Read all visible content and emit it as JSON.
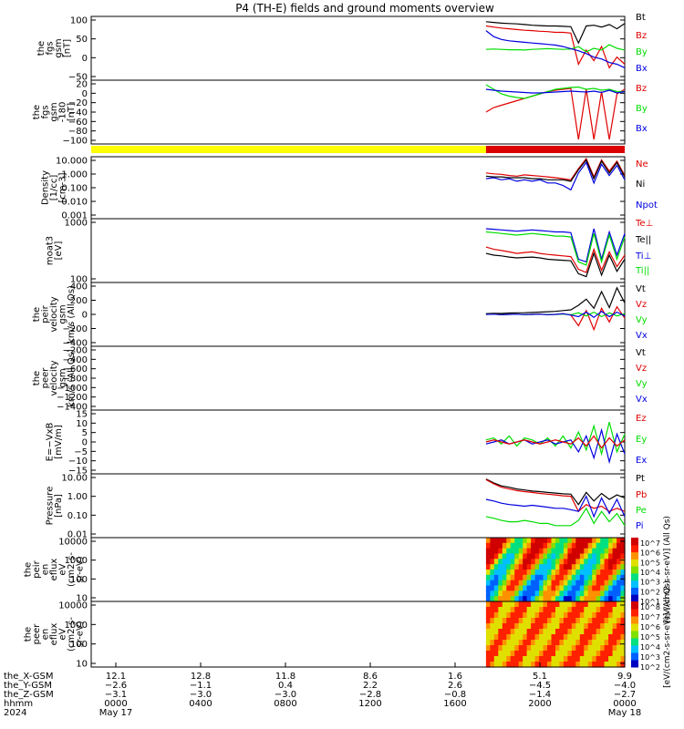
{
  "title": "P4 (TH-E) fields and ground moments overview",
  "colors": {
    "black": "#000000",
    "red": "#e00000",
    "green": "#00dd00",
    "blue": "#0000e0",
    "yellow": "#ffff00",
    "bar_red": "#dd0000"
  },
  "chart_data": [
    {
      "type": "line",
      "ylabel": [
        "the",
        "fgs",
        "gsm",
        "[nT]"
      ],
      "yticks": [
        "100",
        "50",
        "0",
        "−50"
      ],
      "ylim": [
        -75,
        105
      ],
      "legend": [
        "Bt",
        "Bz",
        "By",
        "Bx"
      ],
      "series": [
        {
          "name": "Bt",
          "color": "black",
          "values": [
            90,
            88,
            86,
            85,
            84,
            82,
            80,
            79,
            78,
            78,
            77,
            76,
            30,
            78,
            80,
            75,
            82,
            70,
            85
          ]
        },
        {
          "name": "Bz",
          "color": "red",
          "values": [
            78,
            75,
            72,
            70,
            68,
            66,
            65,
            63,
            62,
            60,
            60,
            58,
            -30,
            10,
            -20,
            20,
            -40,
            -10,
            -30
          ]
        },
        {
          "name": "By",
          "color": "green",
          "values": [
            12,
            13,
            12,
            11,
            11,
            10,
            12,
            13,
            14,
            13,
            12,
            13,
            20,
            5,
            15,
            10,
            25,
            15,
            10
          ]
        },
        {
          "name": "Bx",
          "color": "blue",
          "values": [
            65,
            48,
            40,
            36,
            34,
            32,
            30,
            28,
            26,
            24,
            20,
            14,
            8,
            0,
            -10,
            -15,
            -25,
            -30,
            -40
          ]
        }
      ]
    },
    {
      "type": "line",
      "ylabel": [
        "the",
        "fgs",
        "gsm",
        "-180",
        "[nT]"
      ],
      "yticks": [
        "20",
        "0",
        "−20",
        "−40",
        "−60",
        "−80",
        "−100"
      ],
      "ylim": [
        -110,
        30
      ],
      "legend": [
        "Bz",
        "By",
        "Bx"
      ],
      "series": [
        {
          "name": "Bz",
          "color": "red",
          "values": [
            -40,
            -30,
            -25,
            -20,
            -15,
            -10,
            -5,
            0,
            5,
            8,
            10,
            12,
            -100,
            10,
            -100,
            5,
            -100,
            0,
            10
          ]
        },
        {
          "name": "By",
          "color": "green",
          "values": [
            20,
            10,
            0,
            -5,
            -8,
            -10,
            -5,
            0,
            5,
            10,
            12,
            14,
            15,
            10,
            12,
            8,
            10,
            5,
            5
          ]
        },
        {
          "name": "Bx",
          "color": "blue",
          "values": [
            10,
            8,
            6,
            5,
            4,
            3,
            2,
            2,
            3,
            4,
            5,
            6,
            5,
            4,
            6,
            3,
            8,
            2,
            5
          ]
        }
      ]
    },
    {
      "type": "line",
      "ylabel": [
        "Density",
        "[1/cc]",
        "[cm-3]"
      ],
      "yticks": [
        "10.000",
        "1.000",
        "0.100",
        "0.010",
        "0.001"
      ],
      "yscale": "log",
      "ylim": [
        0.001,
        20
      ],
      "legend": [
        "Ne",
        "Ni",
        "Npot"
      ],
      "series": [
        {
          "name": "Ne",
          "color": "red",
          "values": [
            1.5,
            1.3,
            1.2,
            1.0,
            0.9,
            1.1,
            1.0,
            0.9,
            0.8,
            0.7,
            0.6,
            0.5,
            3.0,
            15,
            0.8,
            12,
            2,
            10,
            1
          ]
        },
        {
          "name": "Ni",
          "color": "black",
          "values": [
            0.9,
            0.8,
            0.8,
            0.7,
            0.7,
            0.7,
            0.6,
            0.6,
            0.5,
            0.5,
            0.5,
            0.4,
            2.5,
            12,
            0.6,
            10,
            1.5,
            8,
            0.8
          ]
        },
        {
          "name": "Npot",
          "color": "blue",
          "values": [
            0.6,
            0.7,
            0.5,
            0.6,
            0.4,
            0.5,
            0.4,
            0.5,
            0.3,
            0.3,
            0.2,
            0.1,
            1.5,
            8,
            0.3,
            6,
            1,
            5,
            0.5
          ]
        }
      ]
    },
    {
      "type": "line",
      "ylabel": [
        "moat3",
        "[eV]"
      ],
      "yticks": [
        "1000",
        "100"
      ],
      "yscale": "log",
      "ylim": [
        60,
        5000
      ],
      "legend": [
        "Te⊥",
        "Te||",
        "Ti⊥",
        "Ti||"
      ],
      "series": [
        {
          "name": "Te⊥",
          "color": "red",
          "values": [
            700,
            600,
            550,
            500,
            450,
            480,
            500,
            450,
            420,
            400,
            380,
            360,
            150,
            120,
            600,
            140,
            500,
            180,
            400
          ]
        },
        {
          "name": "Te||",
          "color": "black",
          "values": [
            450,
            400,
            380,
            350,
            330,
            340,
            350,
            330,
            300,
            290,
            280,
            270,
            110,
            90,
            450,
            100,
            400,
            130,
            300
          ]
        },
        {
          "name": "Ti⊥",
          "color": "blue",
          "values": [
            2500,
            2400,
            2300,
            2200,
            2100,
            2200,
            2300,
            2200,
            2100,
            2000,
            2000,
            1900,
            300,
            250,
            2500,
            300,
            2000,
            400,
            1800
          ]
        },
        {
          "name": "Ti||",
          "color": "green",
          "values": [
            2000,
            1900,
            1800,
            1700,
            1600,
            1700,
            1800,
            1700,
            1600,
            1500,
            1500,
            1400,
            250,
            200,
            1800,
            250,
            1600,
            300,
            1400
          ]
        }
      ]
    },
    {
      "type": "line",
      "ylabel": [
        "the",
        "peir",
        "velocity",
        "gsm",
        "km/s (All Qs)"
      ],
      "yticks": [
        "400",
        "200",
        "0",
        "−200",
        "−400"
      ],
      "ylim": [
        -420,
        420
      ],
      "legend": [
        "Vt",
        "Vz",
        "Vy",
        "Vx"
      ],
      "series": [
        {
          "name": "Vt",
          "color": "black",
          "values": [
            10,
            15,
            12,
            18,
            20,
            22,
            25,
            30,
            35,
            40,
            50,
            60,
            120,
            200,
            80,
            300,
            90,
            350,
            150
          ]
        },
        {
          "name": "Vz",
          "color": "red",
          "values": [
            0,
            5,
            -5,
            0,
            3,
            -3,
            0,
            5,
            -5,
            0,
            10,
            -10,
            -150,
            50,
            -200,
            80,
            -100,
            100,
            -50
          ]
        },
        {
          "name": "Vy",
          "color": "green",
          "values": [
            0,
            2,
            -2,
            0,
            3,
            -3,
            0,
            2,
            -2,
            0,
            5,
            -5,
            20,
            -20,
            30,
            -30,
            20,
            -20,
            10
          ]
        },
        {
          "name": "Vx",
          "color": "blue",
          "values": [
            0,
            3,
            -3,
            0,
            2,
            -2,
            0,
            3,
            -3,
            0,
            8,
            -8,
            -30,
            30,
            -40,
            40,
            -30,
            30,
            -20
          ]
        }
      ]
    },
    {
      "type": "line",
      "ylabel": [
        "the",
        "peer",
        "velocity",
        "gsm",
        "km/s (All Qs)"
      ],
      "yticks": [
        "−200",
        "−400",
        "−600",
        "−800",
        "−1000",
        "−1200",
        "−1400"
      ],
      "ylim": [
        -1450,
        -100
      ],
      "legend": [
        "Vt",
        "Vz",
        "Vy",
        "Vx"
      ],
      "series": []
    },
    {
      "type": "line",
      "ylabel": [
        "E=−VxB",
        "[mV/m]"
      ],
      "yticks": [
        "15",
        "10",
        "5",
        "0",
        "−5",
        "−10",
        "−15"
      ],
      "ylim": [
        -16,
        16
      ],
      "legend": [
        "Ez",
        "Ey",
        "Ex"
      ],
      "series": [
        {
          "name": "Ey",
          "color": "green",
          "values": [
            1,
            2,
            -1,
            3,
            -2,
            2,
            1,
            -1,
            2,
            -2,
            3,
            -3,
            5,
            -4,
            8,
            -6,
            10,
            -5,
            4
          ]
        },
        {
          "name": "Ex",
          "color": "blue",
          "values": [
            -1,
            0,
            1,
            -1,
            0,
            1,
            -1,
            0,
            1,
            -1,
            0,
            1,
            -5,
            3,
            -8,
            6,
            -10,
            4,
            -6
          ]
        },
        {
          "name": "Ez",
          "color": "red",
          "values": [
            0,
            1,
            0,
            -1,
            0,
            1,
            0,
            -1,
            0,
            1,
            0,
            -1,
            2,
            -2,
            3,
            -3,
            2,
            -2,
            1
          ]
        }
      ]
    },
    {
      "type": "line",
      "ylabel": [
        "Pressure",
        "[nPa]"
      ],
      "yticks": [
        "10.00",
        "1.00",
        "0.10",
        "0.01"
      ],
      "yscale": "log",
      "ylim": [
        0.006,
        30
      ],
      "legend": [
        "Pt",
        "Pb",
        "Pe",
        "Pi"
      ],
      "series": [
        {
          "name": "Pt",
          "color": "black",
          "values": [
            15,
            9,
            6,
            5,
            4,
            3.5,
            3,
            2.8,
            2.5,
            2.3,
            2.1,
            2,
            0.5,
            2.5,
            0.8,
            2.2,
            1,
            1.8,
            1.2
          ]
        },
        {
          "name": "Pb",
          "color": "red",
          "values": [
            14,
            8,
            5,
            4,
            3.2,
            2.8,
            2.5,
            2.2,
            2,
            1.8,
            1.6,
            1.5,
            0.2,
            0.5,
            0.3,
            0.4,
            0.2,
            0.3,
            0.2
          ]
        },
        {
          "name": "Pe",
          "color": "green",
          "values": [
            0.1,
            0.08,
            0.06,
            0.05,
            0.05,
            0.06,
            0.05,
            0.04,
            0.04,
            0.03,
            0.03,
            0.03,
            0.06,
            0.3,
            0.04,
            0.2,
            0.05,
            0.15,
            0.03
          ]
        },
        {
          "name": "Pi",
          "color": "blue",
          "values": [
            1,
            0.8,
            0.6,
            0.5,
            0.45,
            0.4,
            0.45,
            0.4,
            0.35,
            0.3,
            0.3,
            0.25,
            0.2,
            1.5,
            0.1,
            1.2,
            0.15,
            1,
            0.1
          ]
        }
      ]
    },
    {
      "type": "heatmap",
      "ylabel": [
        "the",
        "peir",
        "en",
        "eflux",
        "eV",
        "(cm2-s-",
        "sr-eV)"
      ],
      "yticks": [
        "10000",
        "1000",
        "100",
        "10"
      ],
      "yscale": "log",
      "ylim": [
        7,
        25000
      ],
      "colorbar_label": "[eV/(cm2-s-sr-eV)] (All Qs)",
      "colorbar_ticks": [
        "10^7",
        "10^6",
        "10^5",
        "10^4",
        "10^3",
        "10^2",
        "10^1"
      ]
    },
    {
      "type": "heatmap",
      "ylabel": [
        "the",
        "peer",
        "en",
        "eflux",
        "eV",
        "(cm2-s-",
        "sr-eV)"
      ],
      "yticks": [
        "10000",
        "1000",
        "100",
        "10"
      ],
      "yscale": "log",
      "ylim": [
        7,
        25000
      ],
      "colorbar_label": "[eV/(cm2-s-sr-eV)] (All Qs)",
      "colorbar_ticks": [
        "10^8",
        "10^7",
        "10^6",
        "10^5",
        "10^4",
        "10^3",
        "10^2"
      ]
    }
  ],
  "xaxis": {
    "ticks": [
      "0000",
      "0400",
      "0800",
      "1200",
      "1600",
      "2000",
      "0000"
    ],
    "row_labels": [
      "the_X-GSM",
      "the_Y-GSM",
      "the_Z-GSM",
      "hhmm",
      "2024"
    ],
    "x_gsm": [
      "12.1",
      "12.8",
      "11.8",
      "8.6",
      "1.6",
      "5.1",
      "9.9"
    ],
    "y_gsm": [
      "−2.6",
      "−1.1",
      "0.4",
      "2.2",
      "2.6",
      "−4.5",
      "−4.0"
    ],
    "z_gsm": [
      "−3.1",
      "−3.0",
      "−3.0",
      "−2.8",
      "−0.8",
      "−1.4",
      "−2.7"
    ],
    "date_start": "May 17",
    "date_end": "May 18"
  },
  "status_bar": {
    "segments": [
      {
        "color": "yellow",
        "from": 0.0,
        "to": 0.74
      },
      {
        "color": "bar_red",
        "from": 0.74,
        "to": 1.0
      }
    ]
  }
}
